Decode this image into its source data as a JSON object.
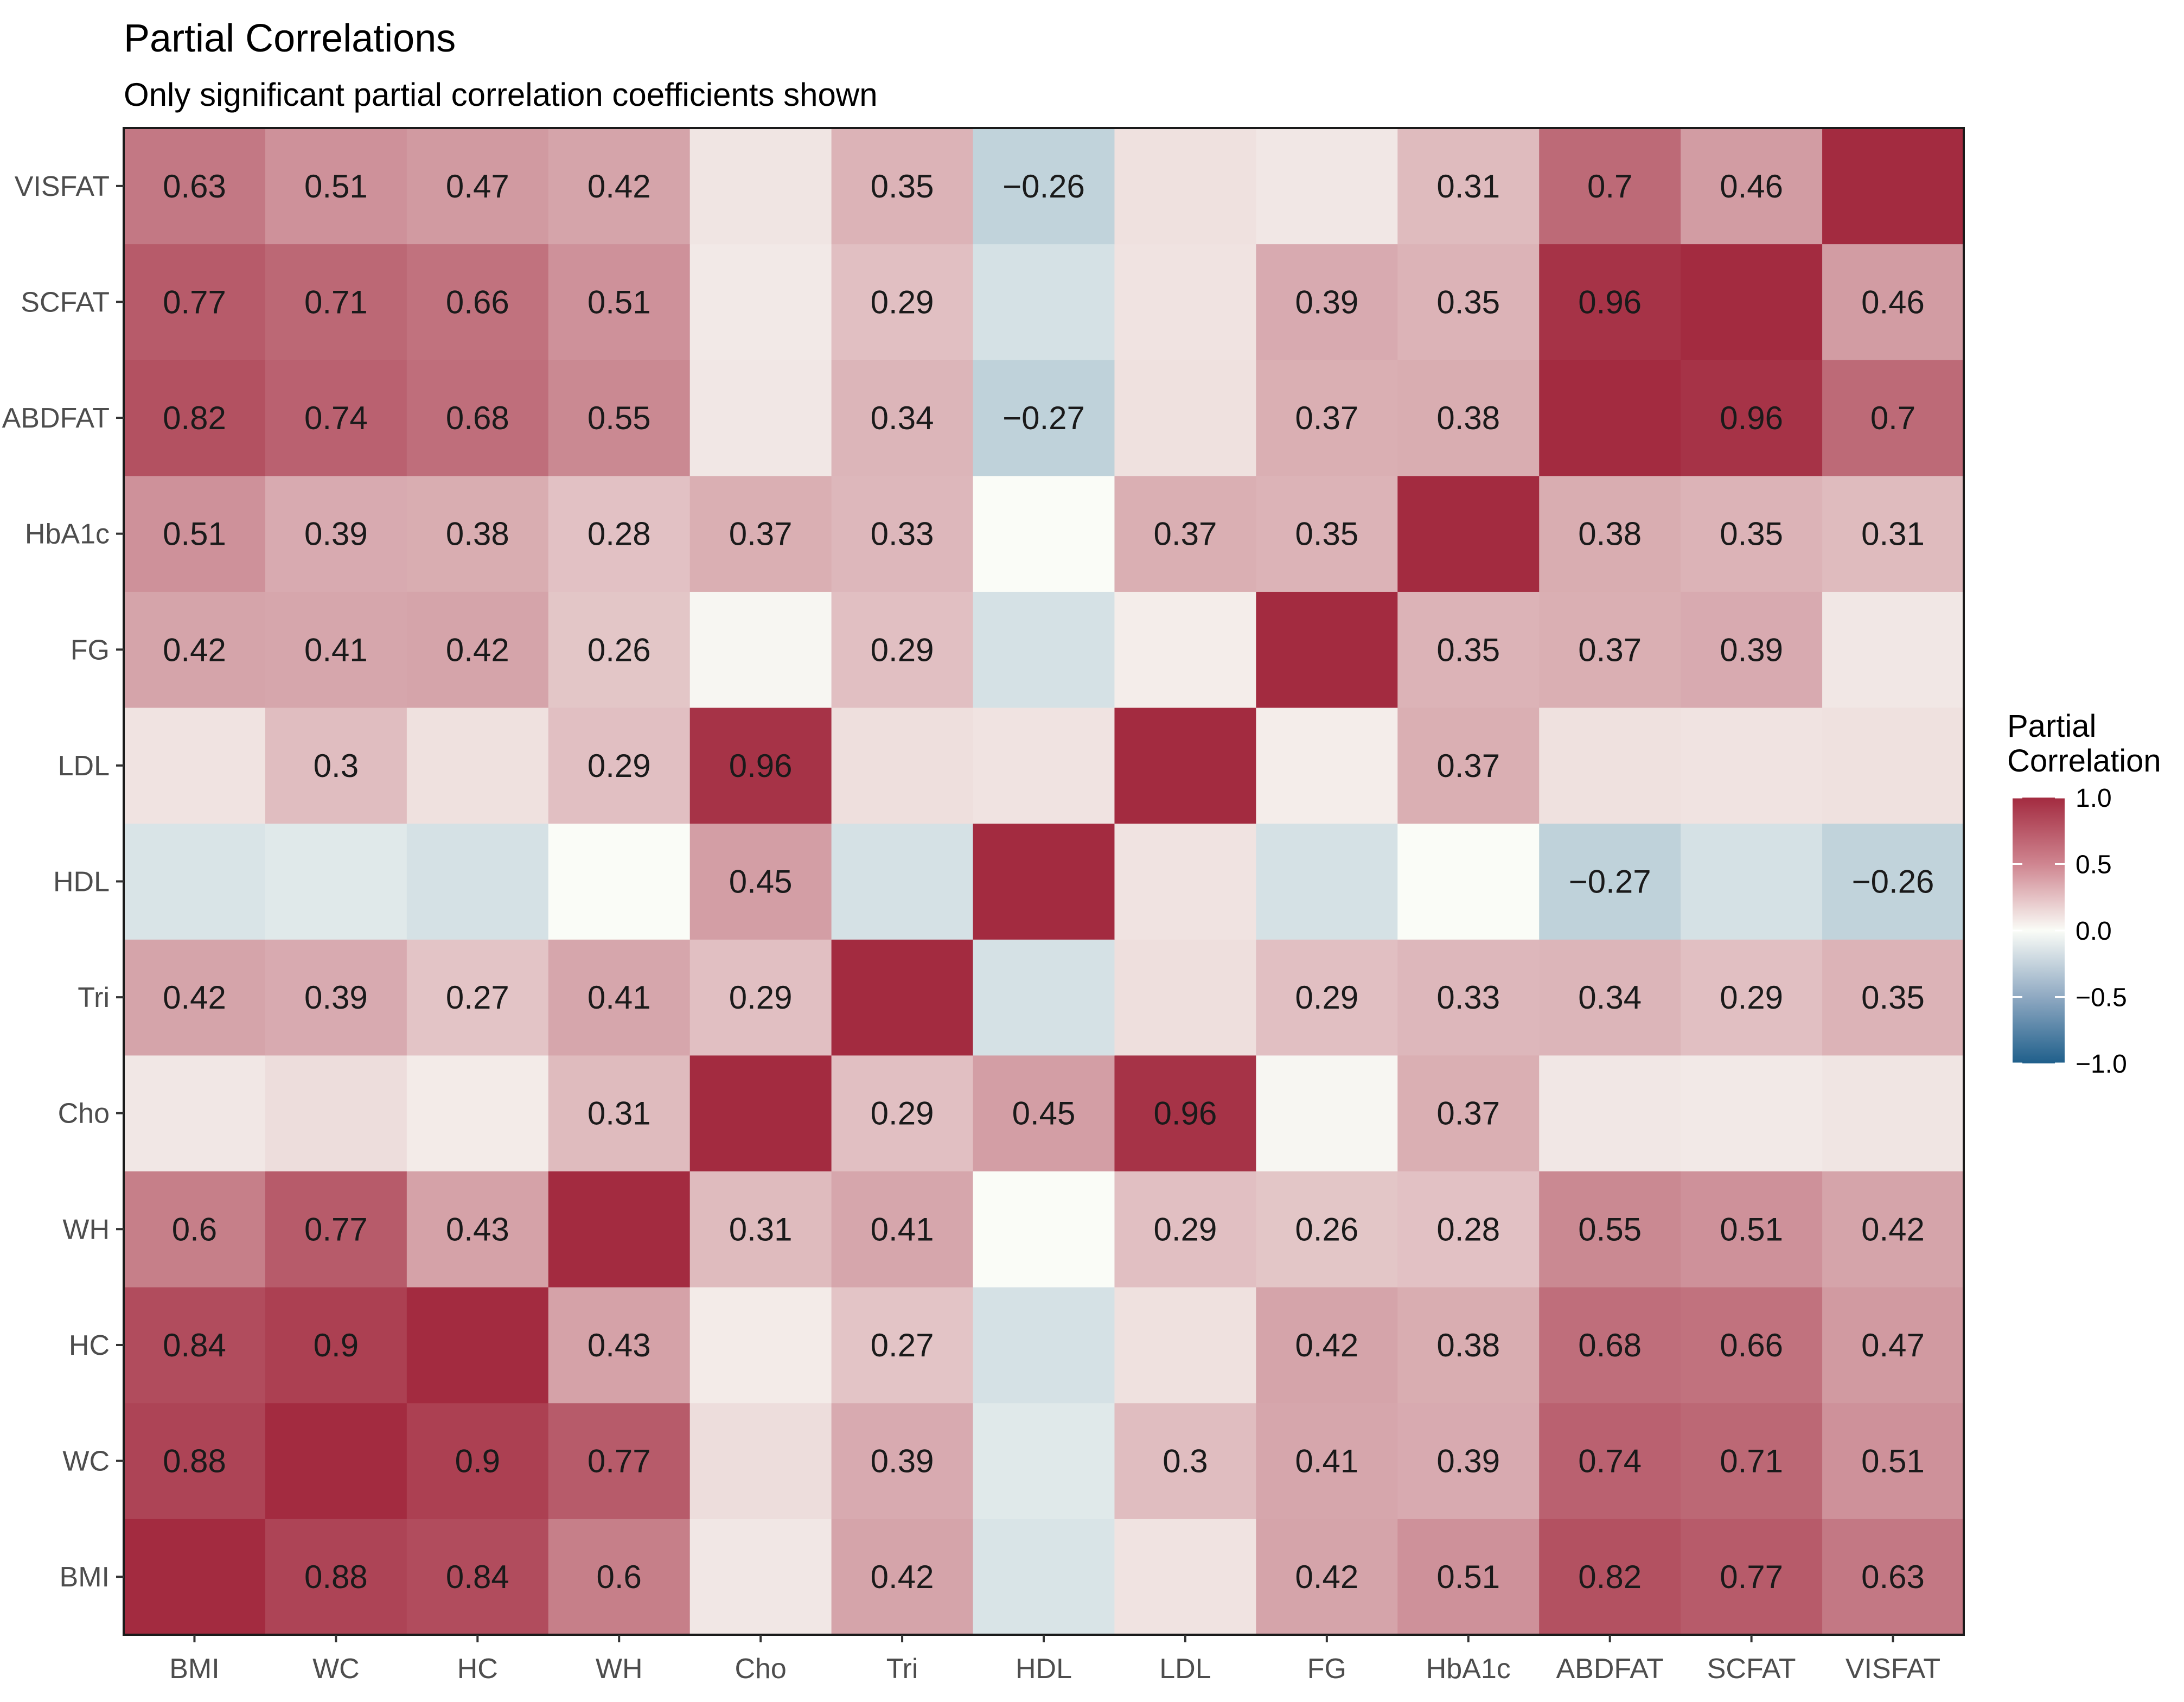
{
  "chart_data": {
    "type": "heatmap",
    "title": "Partial Correlations",
    "subtitle": "Only significant partial correlation coefficients shown",
    "variables": [
      "BMI",
      "WC",
      "HC",
      "WH",
      "Cho",
      "Tri",
      "HDL",
      "LDL",
      "FG",
      "HbA1c",
      "ABDFAT",
      "SCFAT",
      "VISFAT"
    ],
    "x_categories": [
      "BMI",
      "WC",
      "HC",
      "WH",
      "Cho",
      "Tri",
      "HDL",
      "LDL",
      "FG",
      "HbA1c",
      "ABDFAT",
      "SCFAT",
      "VISFAT"
    ],
    "y_categories_bottom_to_top": [
      "BMI",
      "WC",
      "HC",
      "WH",
      "Cho",
      "Tri",
      "HDL",
      "LDL",
      "FG",
      "HbA1c",
      "ABDFAT",
      "SCFAT",
      "VISFAT"
    ],
    "matrix": [
      [
        1.0,
        0.88,
        0.84,
        0.6,
        0.1,
        0.42,
        -0.15,
        0.12,
        0.42,
        0.51,
        0.82,
        0.77,
        0.63
      ],
      [
        0.88,
        1.0,
        0.9,
        0.77,
        0.15,
        0.39,
        -0.12,
        0.3,
        0.41,
        0.39,
        0.74,
        0.71,
        0.51
      ],
      [
        0.84,
        0.9,
        1.0,
        0.43,
        0.08,
        0.27,
        -0.17,
        0.13,
        0.42,
        0.38,
        0.68,
        0.66,
        0.47
      ],
      [
        0.6,
        0.77,
        0.43,
        1.0,
        0.31,
        0.41,
        0.0,
        0.29,
        0.26,
        0.28,
        0.55,
        0.51,
        0.42
      ],
      [
        0.1,
        0.15,
        0.08,
        0.31,
        1.0,
        0.29,
        0.45,
        0.96,
        0.03,
        0.37,
        0.1,
        0.09,
        0.11
      ],
      [
        0.42,
        0.39,
        0.27,
        0.41,
        0.29,
        1.0,
        -0.17,
        0.14,
        0.29,
        0.33,
        0.34,
        0.29,
        0.35
      ],
      [
        -0.15,
        -0.12,
        -0.17,
        0.0,
        0.45,
        -0.17,
        1.0,
        0.12,
        -0.17,
        0.0,
        -0.27,
        -0.17,
        -0.26
      ],
      [
        0.12,
        0.3,
        0.13,
        0.29,
        0.96,
        0.14,
        0.12,
        1.0,
        0.07,
        0.37,
        0.13,
        0.12,
        0.13
      ],
      [
        0.42,
        0.41,
        0.42,
        0.26,
        0.03,
        0.29,
        -0.17,
        0.07,
        1.0,
        0.35,
        0.37,
        0.39,
        0.1
      ],
      [
        0.51,
        0.39,
        0.38,
        0.28,
        0.37,
        0.33,
        0.0,
        0.37,
        0.35,
        1.0,
        0.38,
        0.35,
        0.31
      ],
      [
        0.82,
        0.74,
        0.68,
        0.55,
        0.1,
        0.34,
        -0.27,
        0.13,
        0.37,
        0.38,
        1.0,
        0.96,
        0.7
      ],
      [
        0.77,
        0.71,
        0.66,
        0.51,
        0.09,
        0.29,
        -0.17,
        0.12,
        0.39,
        0.35,
        0.96,
        1.0,
        0.46
      ],
      [
        0.63,
        0.51,
        0.47,
        0.42,
        0.11,
        0.35,
        -0.26,
        0.13,
        0.1,
        0.31,
        0.7,
        0.46,
        1.0
      ]
    ],
    "labels": [
      [
        "",
        "0.88",
        "0.84",
        "0.6",
        "",
        "0.42",
        "",
        "",
        "0.42",
        "0.51",
        "0.82",
        "0.77",
        "0.63"
      ],
      [
        "0.88",
        "",
        "0.9",
        "0.77",
        "",
        "0.39",
        "",
        "0.3",
        "0.41",
        "0.39",
        "0.74",
        "0.71",
        "0.51"
      ],
      [
        "0.84",
        "0.9",
        "",
        "0.43",
        "",
        "0.27",
        "",
        "",
        "0.42",
        "0.38",
        "0.68",
        "0.66",
        "0.47"
      ],
      [
        "0.6",
        "0.77",
        "0.43",
        "",
        "0.31",
        "0.41",
        "",
        "0.29",
        "0.26",
        "0.28",
        "0.55",
        "0.51",
        "0.42"
      ],
      [
        "",
        "",
        "",
        "0.31",
        "",
        "0.29",
        "0.45",
        "0.96",
        "",
        "0.37",
        "",
        "",
        ""
      ],
      [
        "0.42",
        "0.39",
        "0.27",
        "0.41",
        "0.29",
        "",
        "",
        "",
        "0.29",
        "0.33",
        "0.34",
        "0.29",
        "0.35"
      ],
      [
        "",
        "",
        "",
        "",
        "0.45",
        "",
        "",
        "",
        "",
        "",
        "−0.27",
        "",
        "−0.26"
      ],
      [
        "",
        "0.3",
        "",
        "0.29",
        "0.96",
        "",
        "",
        "",
        "",
        "0.37",
        "",
        "",
        ""
      ],
      [
        "0.42",
        "0.41",
        "0.42",
        "0.26",
        "",
        "0.29",
        "",
        "",
        "",
        "0.35",
        "0.37",
        "0.39",
        ""
      ],
      [
        "0.51",
        "0.39",
        "0.38",
        "0.28",
        "0.37",
        "0.33",
        "",
        "0.37",
        "0.35",
        "",
        "0.38",
        "0.35",
        "0.31"
      ],
      [
        "0.82",
        "0.74",
        "0.68",
        "0.55",
        "",
        "0.34",
        "−0.27",
        "",
        "0.37",
        "0.38",
        "",
        "0.96",
        "0.7"
      ],
      [
        "0.77",
        "0.71",
        "0.66",
        "0.51",
        "",
        "0.29",
        "",
        "",
        "0.39",
        "0.35",
        "0.96",
        "",
        "0.46"
      ],
      [
        "0.63",
        "0.51",
        "0.47",
        "0.42",
        "",
        "0.35",
        "−0.26",
        "",
        "",
        "0.31",
        "0.7",
        "0.46",
        ""
      ]
    ],
    "legend": {
      "title_line1": "Partial",
      "title_line2": "Correlation",
      "breaks": [
        1.0,
        0.5,
        0.0,
        -0.5,
        -1.0
      ],
      "break_labels": [
        "1.0",
        "0.5",
        "0.0",
        "−0.5",
        "−1.0"
      ],
      "placement": "right"
    },
    "colors": {
      "low": "#1f5f8b",
      "mid": "#fafcf7",
      "high": "#a32b40"
    },
    "range": [
      -1,
      1
    ]
  }
}
